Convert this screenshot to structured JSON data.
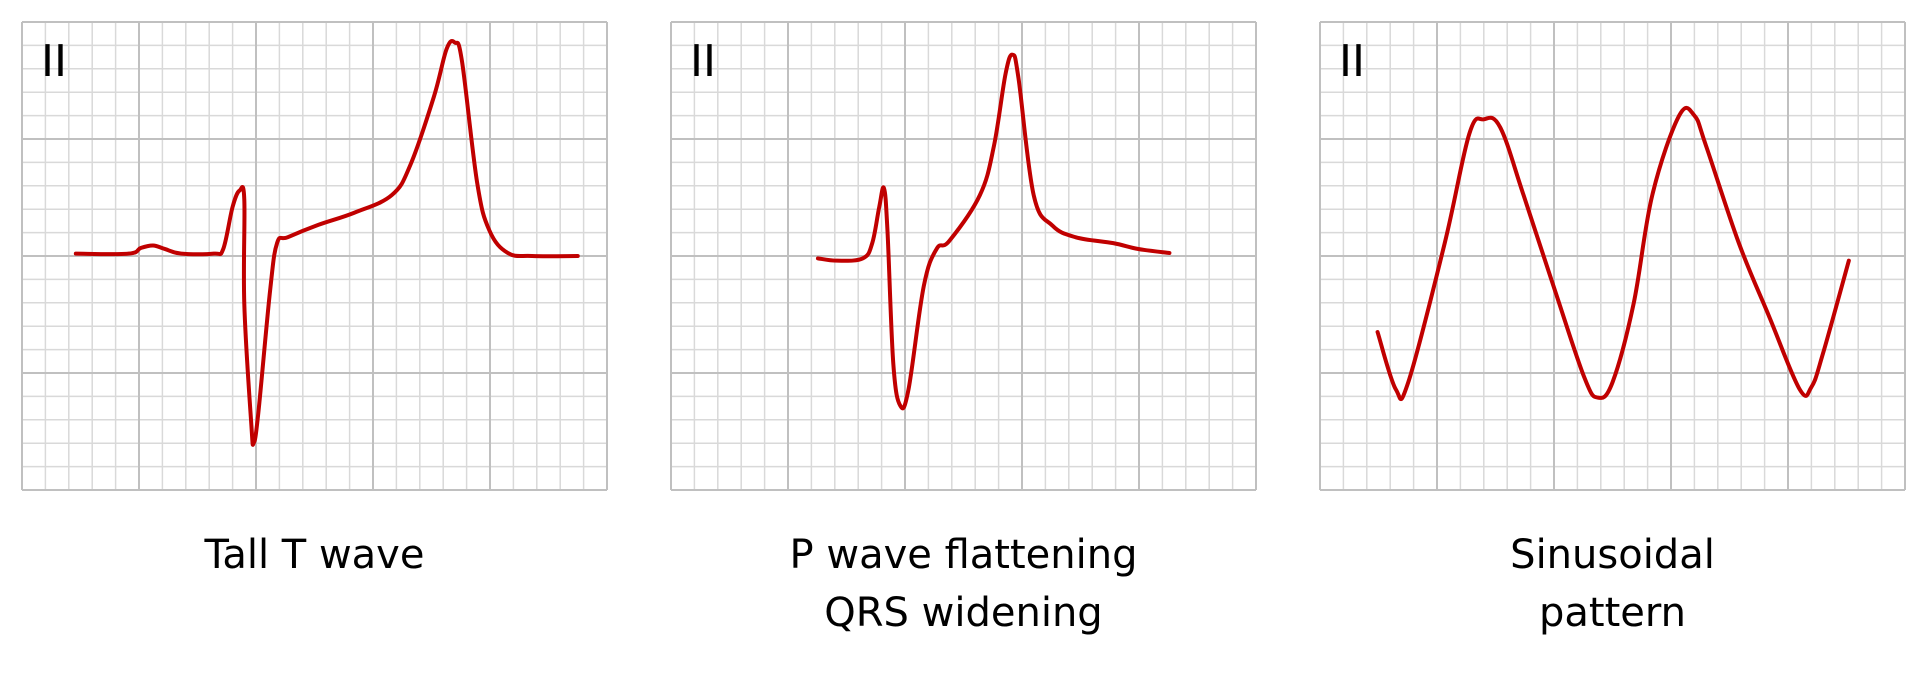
{
  "colors": {
    "trace": "#c00000",
    "grid_minor": "#d9d9d9",
    "grid_major": "#c0c0c0",
    "text": "#000000"
  },
  "panels": [
    {
      "lead": "II",
      "caption": [
        "Tall T wave"
      ]
    },
    {
      "lead": "II",
      "caption": [
        "P wave flattening",
        "QRS widening"
      ]
    },
    {
      "lead": "II",
      "caption": [
        "Sinusoidal",
        "pattern"
      ]
    }
  ]
}
